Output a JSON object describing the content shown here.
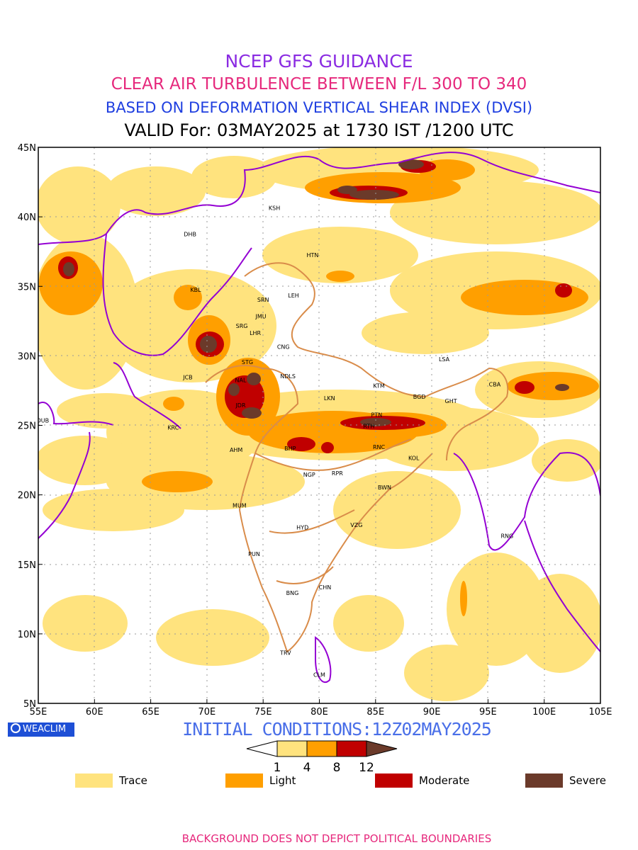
{
  "header": {
    "line1": "NCEP GFS GUIDANCE",
    "line2": "CLEAR AIR TURBULENCE BETWEEN F/L 300 TO 340",
    "line3": "BASED ON DEFORMATION VERTICAL SHEAR INDEX (DVSI)",
    "line4": "VALID For: 03MAY2025 at 1730 IST /1200 UTC"
  },
  "axes": {
    "x_ticks": [
      "55E",
      "60E",
      "65E",
      "70E",
      "75E",
      "80E",
      "85E",
      "90E",
      "95E",
      "100E",
      "105E"
    ],
    "y_ticks": [
      "45N",
      "40N",
      "35N",
      "30N",
      "25N",
      "20N",
      "15N",
      "10N",
      "5N"
    ],
    "lon_range": [
      55,
      105
    ],
    "lat_range": [
      5,
      45
    ]
  },
  "cities": [
    {
      "name": "KSH",
      "lon": 76.0,
      "lat": 40.5
    },
    {
      "name": "DHB",
      "lon": 68.5,
      "lat": 38.6
    },
    {
      "name": "HTN",
      "lon": 79.4,
      "lat": 37.1
    },
    {
      "name": "KBL",
      "lon": 69.0,
      "lat": 34.6
    },
    {
      "name": "SRN",
      "lon": 75.0,
      "lat": 33.9
    },
    {
      "name": "LEH",
      "lon": 77.7,
      "lat": 34.2
    },
    {
      "name": "JMU",
      "lon": 74.8,
      "lat": 32.7
    },
    {
      "name": "SRG",
      "lon": 73.1,
      "lat": 32.0
    },
    {
      "name": "LHR",
      "lon": 74.3,
      "lat": 31.5
    },
    {
      "name": "CNG",
      "lon": 76.8,
      "lat": 30.5
    },
    {
      "name": "STG",
      "lon": 73.6,
      "lat": 29.4
    },
    {
      "name": "LSA",
      "lon": 91.1,
      "lat": 29.6
    },
    {
      "name": "JCB",
      "lon": 68.3,
      "lat": 28.3
    },
    {
      "name": "NDLS",
      "lon": 77.2,
      "lat": 28.4
    },
    {
      "name": "NAL",
      "lon": 73.0,
      "lat": 28.1
    },
    {
      "name": "KTM",
      "lon": 85.3,
      "lat": 27.7
    },
    {
      "name": "CBA",
      "lon": 95.6,
      "lat": 27.8
    },
    {
      "name": "BGD",
      "lon": 88.9,
      "lat": 26.9
    },
    {
      "name": "LKN",
      "lon": 80.9,
      "lat": 26.8
    },
    {
      "name": "JDR",
      "lon": 73.0,
      "lat": 26.3
    },
    {
      "name": "GHT",
      "lon": 91.7,
      "lat": 26.6
    },
    {
      "name": "PTN",
      "lon": 85.1,
      "lat": 25.6
    },
    {
      "name": "DUB",
      "lon": 55.4,
      "lat": 25.2
    },
    {
      "name": "KRC",
      "lon": 67.0,
      "lat": 24.7
    },
    {
      "name": "RTH",
      "lon": 84.4,
      "lat": 24.8
    },
    {
      "name": "BHP",
      "lon": 77.4,
      "lat": 23.2
    },
    {
      "name": "RNC",
      "lon": 85.3,
      "lat": 23.3
    },
    {
      "name": "AHM",
      "lon": 72.6,
      "lat": 23.1
    },
    {
      "name": "KOL",
      "lon": 88.4,
      "lat": 22.5
    },
    {
      "name": "NGP",
      "lon": 79.1,
      "lat": 21.3
    },
    {
      "name": "RPR",
      "lon": 81.6,
      "lat": 21.4
    },
    {
      "name": "BWN",
      "lon": 85.8,
      "lat": 20.4
    },
    {
      "name": "MUM",
      "lon": 72.9,
      "lat": 19.1
    },
    {
      "name": "HYD",
      "lon": 78.5,
      "lat": 17.5
    },
    {
      "name": "VZG",
      "lon": 83.3,
      "lat": 17.7
    },
    {
      "name": "RNG",
      "lon": 96.7,
      "lat": 16.9
    },
    {
      "name": "PUN",
      "lon": 74.2,
      "lat": 15.6
    },
    {
      "name": "CHN",
      "lon": 80.5,
      "lat": 13.2
    },
    {
      "name": "BNG",
      "lon": 77.6,
      "lat": 12.8
    },
    {
      "name": "TRV",
      "lon": 77.0,
      "lat": 8.5
    },
    {
      "name": "CLM",
      "lon": 80.0,
      "lat": 6.9
    }
  ],
  "colorbar": {
    "ticks": [
      "1",
      "4",
      "8",
      "12"
    ],
    "colors": [
      "#ffffff",
      "#ffe37e",
      "#ff9f00",
      "#c00000",
      "#6b3a2a"
    ]
  },
  "init_text": "INITIAL CONDITIONS:12Z02MAY2025",
  "legend": [
    {
      "label": "Trace",
      "color": "#ffe37e"
    },
    {
      "label": "Light",
      "color": "#ff9f00"
    },
    {
      "label": "Moderate",
      "color": "#c00000"
    },
    {
      "label": "Severe",
      "color": "#6b3a2a"
    }
  ],
  "logo_text": "WEACLIM",
  "footer": "BACKGROUND DOES NOT DEPICT POLITICAL BOUNDARIES"
}
